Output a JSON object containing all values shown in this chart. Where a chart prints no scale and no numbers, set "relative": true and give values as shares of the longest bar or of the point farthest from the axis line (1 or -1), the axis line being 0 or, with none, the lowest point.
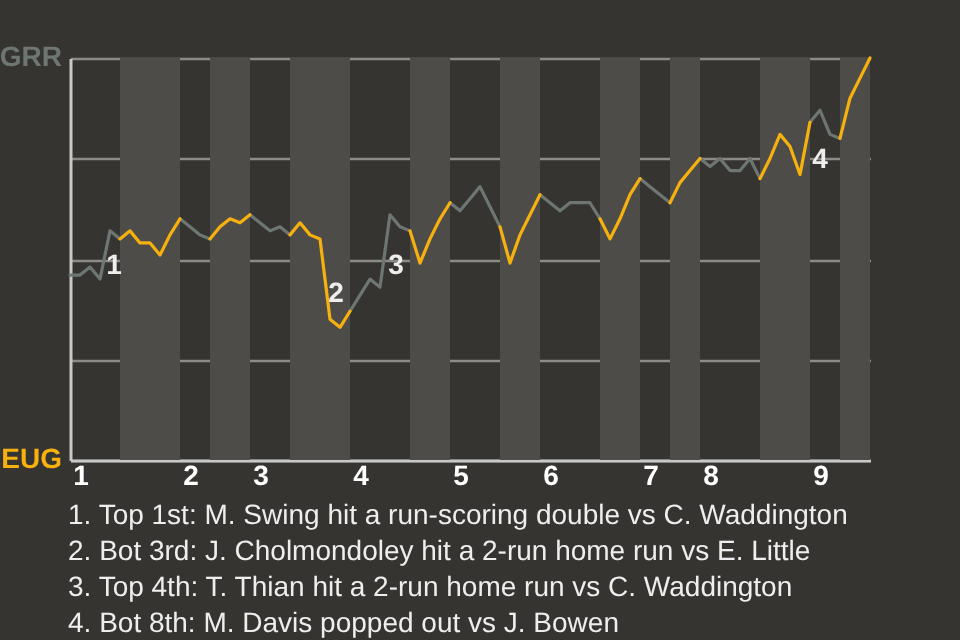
{
  "chart_data": {
    "type": "line",
    "relative": true,
    "categories": [
      null,
      "1",
      null,
      null,
      null,
      null,
      null,
      null,
      null,
      null,
      null,
      null,
      "2",
      null,
      null,
      null,
      null,
      null,
      null,
      "3",
      null,
      null,
      null,
      null,
      null,
      null,
      null,
      null,
      null,
      "4",
      null,
      null,
      null,
      null,
      null,
      null,
      null,
      null,
      null,
      "5",
      null,
      null,
      null,
      null,
      null,
      null,
      null,
      null,
      "6",
      null,
      null,
      null,
      null,
      null,
      null,
      null,
      null,
      null,
      "7",
      null,
      null,
      null,
      null,
      null,
      "8",
      null,
      null,
      null,
      null,
      null,
      null,
      null,
      null,
      null,
      null,
      "9",
      null,
      null,
      null,
      null,
      null
    ],
    "series": [
      {
        "color": "#6d7673",
        "values": [
          0.46,
          0.46,
          0.48,
          0.45,
          0.57,
          0.55,
          null,
          null,
          null,
          null,
          null,
          0.6,
          0.58,
          0.56,
          0.55,
          null,
          null,
          null,
          0.61,
          0.59,
          0.57,
          0.58,
          0.56,
          null,
          null,
          null,
          null,
          null,
          0.37,
          0.41,
          0.45,
          0.43,
          0.61,
          0.58,
          0.57,
          null,
          null,
          null,
          0.64,
          0.62,
          0.65,
          0.68,
          0.63,
          0.58,
          null,
          null,
          null,
          0.66,
          0.64,
          0.62,
          0.64,
          0.64,
          0.64,
          0.6,
          null,
          null,
          null,
          0.7,
          0.68,
          0.66,
          0.64,
          null,
          null,
          0.75,
          0.73,
          0.75,
          0.72,
          0.72,
          0.75,
          0.7,
          null,
          null,
          null,
          null,
          0.84,
          0.87,
          0.81,
          0.8,
          null,
          null,
          null
        ]
      },
      {
        "color": "#f6b10f",
        "values": [
          null,
          null,
          null,
          null,
          null,
          0.55,
          0.57,
          0.54,
          0.54,
          0.51,
          0.56,
          0.6,
          null,
          null,
          0.55,
          0.58,
          0.6,
          0.59,
          0.61,
          null,
          null,
          null,
          0.56,
          0.59,
          0.56,
          0.55,
          0.35,
          0.33,
          0.37,
          null,
          null,
          null,
          null,
          null,
          0.57,
          0.49,
          0.55,
          0.6,
          0.64,
          null,
          null,
          null,
          null,
          0.58,
          0.49,
          0.56,
          0.61,
          0.66,
          null,
          null,
          null,
          null,
          null,
          0.6,
          0.55,
          0.6,
          0.66,
          0.7,
          null,
          null,
          0.64,
          0.69,
          0.72,
          0.75,
          null,
          null,
          null,
          null,
          null,
          0.7,
          0.75,
          0.81,
          0.78,
          0.71,
          0.84,
          null,
          null,
          0.8,
          0.9,
          0.95,
          1.0
        ]
      }
    ],
    "grid": "y",
    "annotations": [
      "GRR",
      "EUG",
      "1",
      "2",
      "3",
      "4",
      "1. Top 1st: M. Swing hit a run-scoring double vs C. Waddington",
      "2. Bot 3rd: J. Cholmondoley hit a 2-run home run vs E. Little",
      "3. Top 4th: T. Thian hit a 2-run home run vs C. Waddington",
      "4. Bot 8th: M. Davis popped out vs J. Bowen"
    ]
  }
}
